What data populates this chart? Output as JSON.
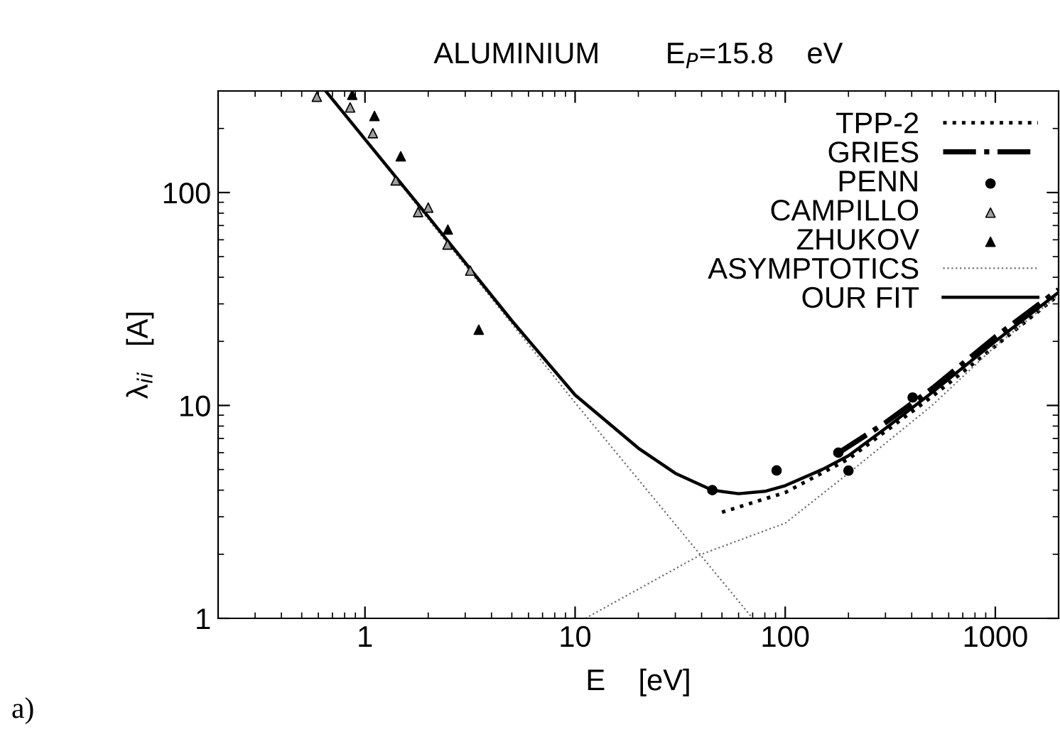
{
  "chart_data": {
    "type": "line",
    "title": "ALUMINIUM        E$_{P}$=15.8    eV",
    "xlabel": "E    [eV]",
    "ylabel": "λ$_{ii}$   [A]",
    "log": "xy",
    "xlim": [
      0.2,
      2000
    ],
    "ylim": [
      1,
      300
    ],
    "xticks": [
      1,
      10,
      100,
      1000
    ],
    "yticks": [
      1,
      10,
      100
    ],
    "grid": false,
    "legend": "top right",
    "annotations": [
      "a)"
    ],
    "series": [
      {
        "name": "TPP-2",
        "line_style": "dotted",
        "color": "#000000",
        "x": [
          50,
          100,
          200,
          500,
          1000,
          2000
        ],
        "values": [
          3.15,
          3.9,
          5.6,
          11,
          19,
          33
        ]
      },
      {
        "name": "GRIES",
        "line_style": "dashdot",
        "color": "#000000",
        "x": [
          180,
          300,
          500,
          1000,
          2000
        ],
        "values": [
          6.0,
          8.3,
          12,
          21,
          35
        ]
      },
      {
        "name": "PENN",
        "type": "scatter",
        "marker": "circle",
        "color": "#000000",
        "x": [
          45,
          91,
          179,
          200,
          404
        ],
        "values": [
          4.0,
          4.95,
          6.0,
          4.94,
          10.9
        ]
      },
      {
        "name": "CAMPILLO",
        "type": "scatter",
        "marker": "triangle",
        "color": "#a0a0a0",
        "x": [
          0.59,
          0.85,
          1.09,
          1.4,
          1.79,
          2.0,
          2.47,
          3.17
        ],
        "values": [
          282,
          251,
          190,
          114,
          81,
          85,
          57,
          43
        ]
      },
      {
        "name": "ZHUKOV",
        "type": "scatter",
        "marker": "triangle",
        "color": "#000000",
        "x": [
          0.87,
          1.11,
          1.48,
          2.48,
          3.48
        ],
        "values": [
          288,
          229,
          148,
          67,
          22.7
        ]
      },
      {
        "name": "ASYMPTOTICS",
        "line_style": "dotted",
        "color": "#707070",
        "x": [
          0.65,
          10,
          70
        ],
        "values": [
          300,
          10.3,
          1
        ]
      },
      {
        "line_style": "dotted",
        "color": "#707070",
        "x": [
          11.2,
          40,
          100,
          200,
          500,
          1000,
          2000
        ],
        "values": [
          1,
          2,
          2.8,
          4.8,
          10,
          19,
          33
        ]
      },
      {
        "name": "OUR FIT",
        "line_style": "solid",
        "color": "#000000",
        "x": [
          0.65,
          1,
          2,
          5,
          10,
          20,
          30,
          45,
          60,
          80,
          100,
          150,
          200,
          300,
          500,
          1000,
          2000
        ],
        "values": [
          300,
          178,
          77,
          25,
          11.2,
          6.3,
          4.8,
          4.0,
          3.85,
          3.95,
          4.2,
          5.0,
          5.8,
          7.8,
          11.5,
          20,
          34
        ]
      }
    ]
  }
}
